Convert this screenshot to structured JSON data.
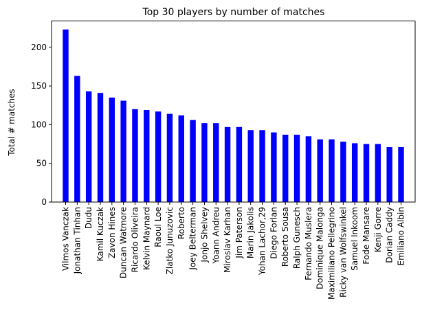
{
  "chart_data": {
    "type": "bar",
    "title": "Top 30 players by number of matches",
    "xlabel": "",
    "ylabel": "Total # matches",
    "ylim": [
      0,
      234
    ],
    "yticks": [
      0,
      50,
      100,
      150,
      200
    ],
    "grid": false,
    "bar_color": "#0000ff",
    "categories": [
      "Vilmos Vanczak",
      "Jonathan Tinhan",
      "Dudu",
      "Kamil Kuczak",
      "Zavon Hines",
      "Duncan Watmore",
      "Ricardo Oliveira",
      "Kelvin Maynard",
      "Raoul Loe",
      "Zlatko Junuzovic",
      "Roberto",
      "Joey Belterman",
      "Jonjo Shelvey",
      "Yoann Andreu",
      "Miroslav Karhan",
      "Jim Paterson",
      "Marin Jakolis",
      "Yohan Lachor,29",
      "Diego Forlan",
      "Roberto Sousa",
      "Ralph Gunesch",
      "Fernando Muslera",
      "Dominique Malonga",
      "Maximiliano Pellegrino",
      "Ricky van Wolfswinkel",
      "Samuel Inkoom",
      "Fode Mansare",
      "Kenji Gorre",
      "Dorian Caddy",
      "Emiliano Albin"
    ],
    "values": [
      223,
      163,
      143,
      141,
      135,
      131,
      120,
      119,
      117,
      114,
      112,
      106,
      102,
      102,
      97,
      97,
      93,
      93,
      90,
      87,
      87,
      85,
      81,
      81,
      78,
      76,
      75,
      75,
      71,
      71
    ]
  }
}
